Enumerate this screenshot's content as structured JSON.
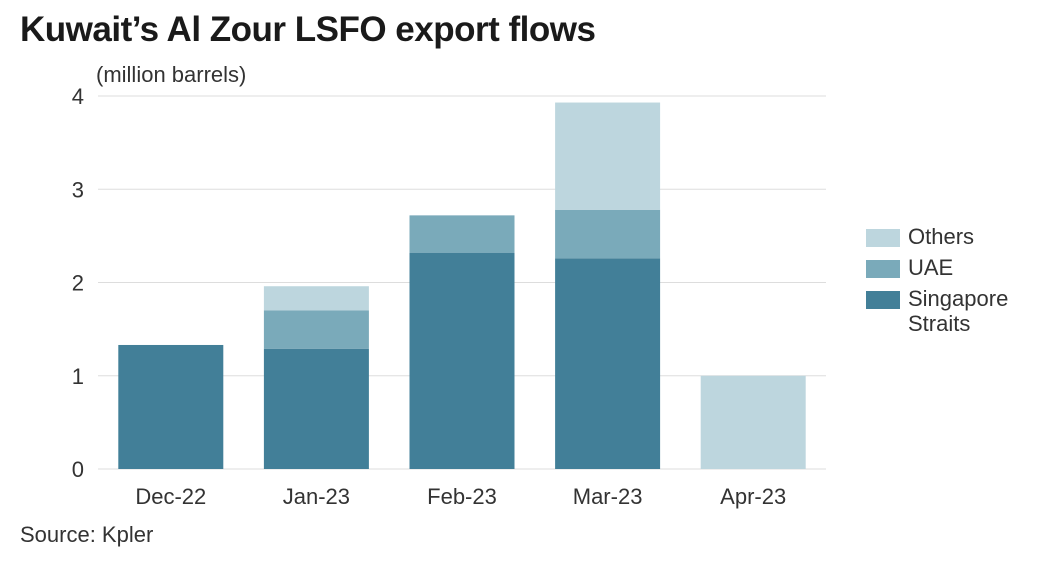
{
  "title": "Kuwait’s Al Zour LSFO export flows",
  "source": "Source: Kpler",
  "colors": {
    "singapore": "#427f98",
    "uae": "#7aaaba",
    "others": "#bdd6de",
    "grid": "#dddddd"
  },
  "chart_data": {
    "type": "bar",
    "stacked": true,
    "title": "Kuwait’s Al Zour LSFO export flows",
    "ylabel": "(million barrels)",
    "xlabel": "",
    "ylim": [
      0,
      4
    ],
    "yticks": [
      0,
      1,
      2,
      3,
      4
    ],
    "grid": true,
    "legend_position": "right",
    "categories": [
      "Dec-22",
      "Jan-23",
      "Feb-23",
      "Mar-23",
      "Apr-23"
    ],
    "series": [
      {
        "name": "Singapore Straits",
        "color": "#427f98",
        "values": [
          1.33,
          1.29,
          2.32,
          2.26,
          0
        ]
      },
      {
        "name": "UAE",
        "color": "#7aaaba",
        "values": [
          0,
          0.41,
          0.4,
          0.52,
          0
        ]
      },
      {
        "name": "Others",
        "color": "#bdd6de",
        "values": [
          0,
          0.26,
          0,
          1.15,
          1.0
        ]
      }
    ]
  }
}
